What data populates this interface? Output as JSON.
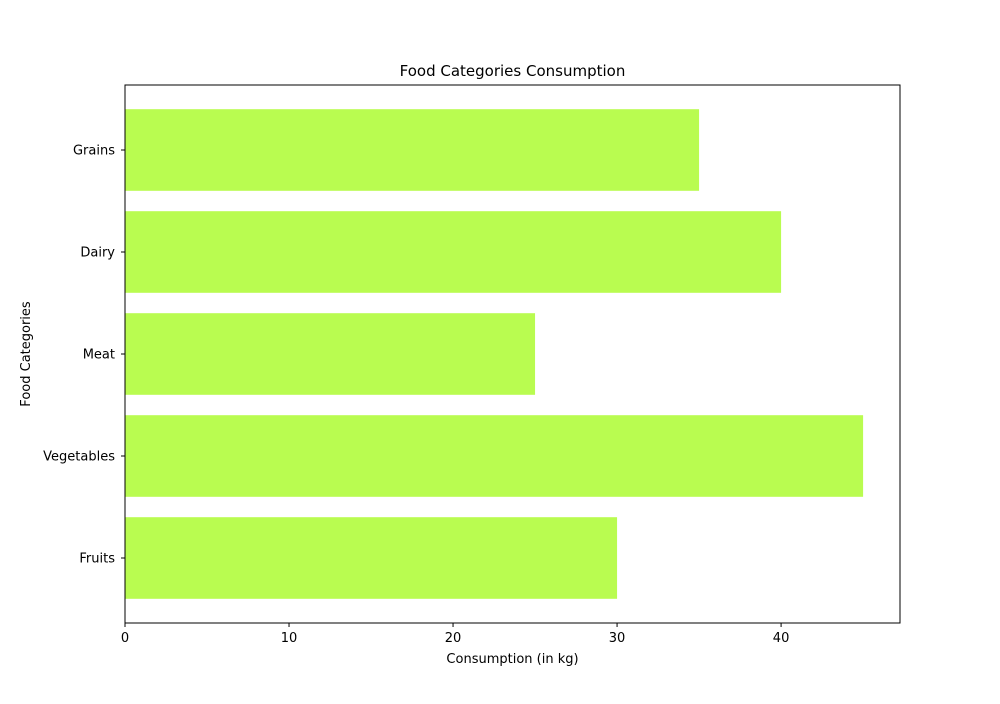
{
  "chart_data": {
    "type": "bar",
    "orientation": "horizontal",
    "title": "Food Categories Consumption",
    "xlabel": "Consumption (in kg)",
    "ylabel": "Food Categories",
    "categories": [
      "Fruits",
      "Vegetables",
      "Meat",
      "Dairy",
      "Grains"
    ],
    "values": [
      30,
      45,
      25,
      40,
      35
    ],
    "xlim": [
      0,
      47.25
    ],
    "xticks": [
      0,
      10,
      20,
      30,
      40
    ],
    "bar_color": "#b9fc50",
    "grid": false,
    "legend": "none"
  }
}
